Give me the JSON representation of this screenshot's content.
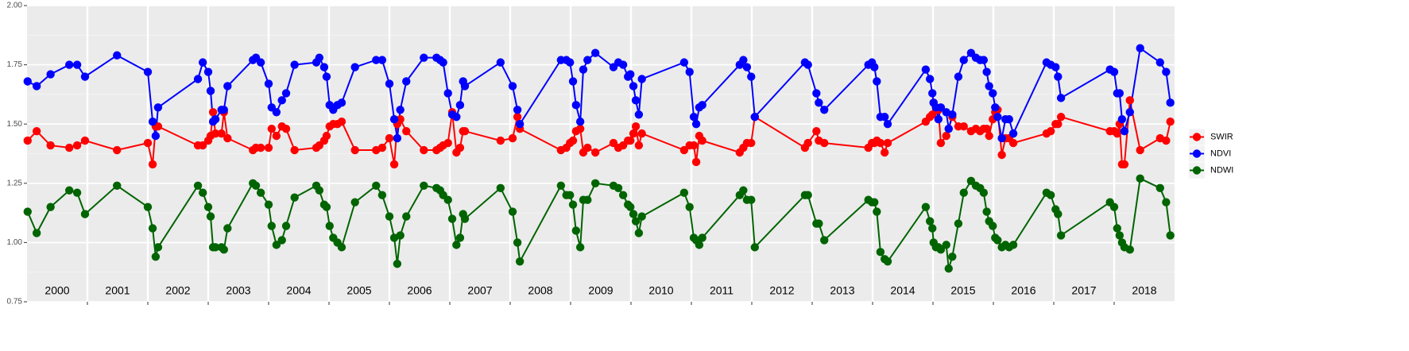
{
  "chart_data": {
    "type": "line",
    "categories": [
      "2000",
      "2001",
      "2002",
      "2003",
      "2004",
      "2005",
      "2006",
      "2007",
      "2008",
      "2009",
      "2010",
      "2011",
      "2012",
      "2013",
      "2014",
      "2015",
      "2016",
      "2017",
      "2018"
    ],
    "x": [
      2000.01,
      2000.16,
      2000.39,
      2000.7,
      2000.83,
      2000.96,
      2001.49,
      2002.0,
      2002.08,
      2002.13,
      2002.17,
      2002.83,
      2002.91,
      2003.0,
      2003.04,
      2003.08,
      2003.12,
      2003.22,
      2003.26,
      2003.32,
      2003.74,
      2003.79,
      2003.87,
      2004.0,
      2004.05,
      2004.13,
      2004.22,
      2004.29,
      2004.43,
      2004.79,
      2004.84,
      2004.92,
      2004.96,
      2005.01,
      2005.07,
      2005.14,
      2005.21,
      2005.43,
      2005.78,
      2005.88,
      2006.0,
      2006.08,
      2006.13,
      2006.18,
      2006.28,
      2006.57,
      2006.78,
      2006.84,
      2006.89,
      2006.97,
      2007.04,
      2007.11,
      2007.17,
      2007.22,
      2007.25,
      2007.84,
      2008.04,
      2008.12,
      2008.16,
      2008.84,
      2008.93,
      2008.99,
      2009.04,
      2009.09,
      2009.16,
      2009.21,
      2009.28,
      2009.41,
      2009.71,
      2009.79,
      2009.87,
      2009.95,
      2009.99,
      2010.04,
      2010.08,
      2010.13,
      2010.18,
      2010.88,
      2010.97,
      2011.04,
      2011.08,
      2011.13,
      2011.18,
      2011.8,
      2011.86,
      2011.92,
      2011.99,
      2012.05,
      2012.88,
      2012.93,
      2013.07,
      2013.11,
      2013.2,
      2013.93,
      2013.99,
      2014.03,
      2014.07,
      2014.13,
      2014.2,
      2014.25,
      2014.88,
      2014.95,
      2014.99,
      2015.01,
      2015.05,
      2015.09,
      2015.13,
      2015.22,
      2015.26,
      2015.32,
      2015.42,
      2015.51,
      2015.63,
      2015.71,
      2015.78,
      2015.84,
      2015.89,
      2015.93,
      2015.99,
      2016.03,
      2016.07,
      2016.14,
      2016.2,
      2016.26,
      2016.33,
      2016.88,
      2016.95,
      2017.03,
      2017.07,
      2017.12,
      2017.93,
      2018.0,
      2018.05,
      2018.09,
      2018.13,
      2018.17,
      2018.26,
      2018.43,
      2018.76,
      2018.86,
      2018.93
    ],
    "series": [
      {
        "name": "SWIR",
        "color": "#ff0000",
        "values": [
          1.43,
          1.47,
          1.41,
          1.4,
          1.41,
          1.43,
          1.39,
          1.42,
          1.33,
          1.49,
          1.49,
          1.41,
          1.41,
          1.43,
          1.45,
          1.55,
          1.46,
          1.46,
          1.55,
          1.44,
          1.39,
          1.4,
          1.4,
          1.4,
          1.48,
          1.45,
          1.49,
          1.48,
          1.39,
          1.4,
          1.41,
          1.43,
          1.45,
          1.49,
          1.5,
          1.5,
          1.51,
          1.39,
          1.39,
          1.4,
          1.44,
          1.33,
          1.5,
          1.52,
          1.47,
          1.39,
          1.39,
          1.4,
          1.41,
          1.42,
          1.55,
          1.38,
          1.4,
          1.47,
          1.47,
          1.43,
          1.44,
          1.53,
          1.48,
          1.39,
          1.4,
          1.42,
          1.43,
          1.47,
          1.48,
          1.38,
          1.4,
          1.38,
          1.42,
          1.4,
          1.41,
          1.43,
          1.43,
          1.46,
          1.49,
          1.41,
          1.46,
          1.39,
          1.41,
          1.41,
          1.34,
          1.45,
          1.43,
          1.38,
          1.4,
          1.42,
          1.42,
          1.53,
          1.4,
          1.42,
          1.47,
          1.43,
          1.42,
          1.4,
          1.42,
          1.42,
          1.43,
          1.42,
          1.38,
          1.42,
          1.51,
          1.53,
          1.54,
          1.59,
          1.57,
          1.56,
          1.42,
          1.45,
          1.48,
          1.53,
          1.49,
          1.49,
          1.47,
          1.48,
          1.47,
          1.48,
          1.48,
          1.45,
          1.52,
          1.55,
          1.56,
          1.37,
          1.44,
          1.44,
          1.42,
          1.46,
          1.47,
          1.5,
          1.5,
          1.53,
          1.47,
          1.47,
          1.46,
          1.5,
          1.33,
          1.33,
          1.6,
          1.39,
          1.44,
          1.43,
          1.51
        ]
      },
      {
        "name": "NDVI",
        "color": "#0000ff",
        "values": [
          1.68,
          1.66,
          1.71,
          1.75,
          1.75,
          1.7,
          1.79,
          1.72,
          1.51,
          1.45,
          1.57,
          1.69,
          1.76,
          1.72,
          1.64,
          1.51,
          1.52,
          1.56,
          1.56,
          1.66,
          1.77,
          1.78,
          1.76,
          1.67,
          1.57,
          1.55,
          1.6,
          1.63,
          1.75,
          1.76,
          1.78,
          1.74,
          1.7,
          1.58,
          1.56,
          1.58,
          1.59,
          1.74,
          1.77,
          1.77,
          1.67,
          1.52,
          1.44,
          1.56,
          1.68,
          1.78,
          1.78,
          1.77,
          1.76,
          1.63,
          1.54,
          1.53,
          1.58,
          1.68,
          1.66,
          1.76,
          1.66,
          1.56,
          1.5,
          1.77,
          1.77,
          1.76,
          1.68,
          1.58,
          1.51,
          1.73,
          1.77,
          1.8,
          1.74,
          1.76,
          1.75,
          1.7,
          1.71,
          1.66,
          1.6,
          1.54,
          1.69,
          1.76,
          1.72,
          1.53,
          1.5,
          1.57,
          1.58,
          1.75,
          1.77,
          1.74,
          1.7,
          1.53,
          1.76,
          1.75,
          1.63,
          1.59,
          1.56,
          1.75,
          1.76,
          1.74,
          1.68,
          1.53,
          1.53,
          1.5,
          1.73,
          1.69,
          1.63,
          1.59,
          1.57,
          1.52,
          1.57,
          1.55,
          1.48,
          1.54,
          1.7,
          1.77,
          1.8,
          1.78,
          1.77,
          1.77,
          1.72,
          1.66,
          1.63,
          1.57,
          1.53,
          1.44,
          1.52,
          1.52,
          1.46,
          1.76,
          1.75,
          1.74,
          1.7,
          1.61,
          1.73,
          1.72,
          1.63,
          1.63,
          1.52,
          1.47,
          1.55,
          1.82,
          1.76,
          1.72,
          1.59
        ]
      },
      {
        "name": "NDWI",
        "color": "#006400",
        "values": [
          1.13,
          1.04,
          1.15,
          1.22,
          1.21,
          1.12,
          1.24,
          1.15,
          1.06,
          0.94,
          0.98,
          1.24,
          1.21,
          1.15,
          1.11,
          0.98,
          0.98,
          0.98,
          0.97,
          1.06,
          1.25,
          1.24,
          1.21,
          1.16,
          1.07,
          0.99,
          1.01,
          1.07,
          1.19,
          1.24,
          1.22,
          1.16,
          1.15,
          1.07,
          1.02,
          1.0,
          0.98,
          1.17,
          1.24,
          1.2,
          1.11,
          1.02,
          0.91,
          1.03,
          1.11,
          1.24,
          1.23,
          1.22,
          1.2,
          1.18,
          1.1,
          0.99,
          1.02,
          1.12,
          1.1,
          1.23,
          1.13,
          1.0,
          0.92,
          1.24,
          1.2,
          1.2,
          1.16,
          1.05,
          0.98,
          1.18,
          1.18,
          1.25,
          1.24,
          1.23,
          1.2,
          1.16,
          1.15,
          1.12,
          1.09,
          1.04,
          1.11,
          1.21,
          1.15,
          1.02,
          1.01,
          0.99,
          1.02,
          1.2,
          1.22,
          1.18,
          1.18,
          0.98,
          1.2,
          1.2,
          1.08,
          1.08,
          1.01,
          1.18,
          1.17,
          1.17,
          1.13,
          0.96,
          0.93,
          0.92,
          1.15,
          1.09,
          1.06,
          1.0,
          0.98,
          0.98,
          0.97,
          0.99,
          0.89,
          0.94,
          1.08,
          1.21,
          1.26,
          1.24,
          1.23,
          1.21,
          1.13,
          1.09,
          1.07,
          1.02,
          1.01,
          0.98,
          0.99,
          0.98,
          0.99,
          1.21,
          1.2,
          1.14,
          1.12,
          1.03,
          1.17,
          1.15,
          1.06,
          1.03,
          1.0,
          0.98,
          0.97,
          1.27,
          1.23,
          1.17,
          1.03
        ]
      }
    ],
    "xlim": [
      2000,
      2019
    ],
    "xticks": [
      2001,
      2002,
      2003,
      2004,
      2005,
      2006,
      2007,
      2008,
      2009,
      2010,
      2011,
      2012,
      2013,
      2014,
      2015,
      2016,
      2017,
      2018
    ],
    "ylim": [
      0.75,
      2.0
    ],
    "yticks": [
      {
        "value": 0.75,
        "label": "0.75"
      },
      {
        "value": 1.0,
        "label": "1.00"
      },
      {
        "value": 1.25,
        "label": "1.25"
      },
      {
        "value": 1.5,
        "label": "1.50"
      },
      {
        "value": 1.75,
        "label": "1.75"
      },
      {
        "value": 2.0,
        "label": "2.00"
      }
    ],
    "grid": true,
    "legend": "right"
  }
}
